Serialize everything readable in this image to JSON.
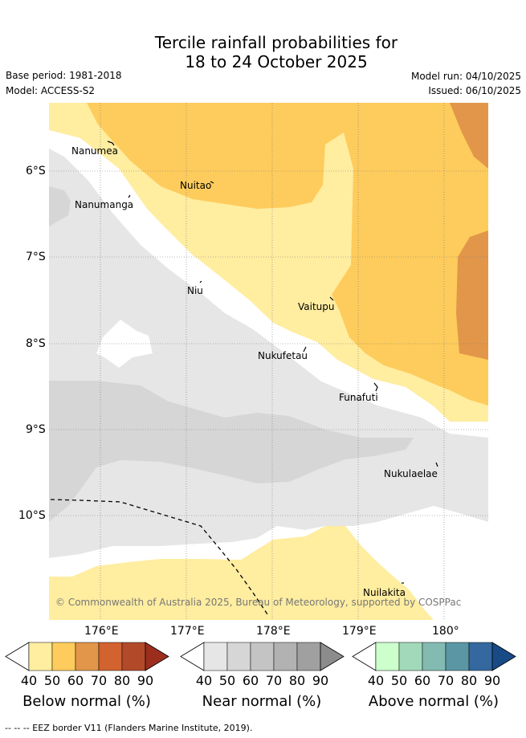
{
  "title": {
    "line1": "Tercile rainfall probabilities for",
    "line2": "18 to 24 October 2025"
  },
  "meta": {
    "base_period": "Base period: 1981-2018",
    "model": "Model: ACCESS-S2",
    "model_run": "Model run: 04/10/2025",
    "issued": "Issued: 06/10/2025"
  },
  "map": {
    "lat_ticks": [
      "6°S",
      "7°S",
      "8°S",
      "9°S",
      "10°S"
    ],
    "lon_ticks": [
      "176°E",
      "177°E",
      "178°E",
      "179°E",
      "180°"
    ],
    "places": [
      "Nanumea",
      "Nuitao",
      "Nanumanga",
      "Niu",
      "Vaitupu",
      "Nukufetau",
      "Funafuti",
      "Nukulaelae",
      "Nuilakita"
    ],
    "copyright": "© Commonwealth of Australia 2025, Bureau of Meteorology, supported by COSPPac"
  },
  "colorbars": [
    {
      "label": "Below normal (%)",
      "ticks": [
        "40",
        "50",
        "60",
        "70",
        "80",
        "90"
      ],
      "colors": [
        "#ffeda0",
        "#fecc5c",
        "#e2964a",
        "#d2622f",
        "#b24a2a",
        "#9c2e1e"
      ]
    },
    {
      "label": "Near normal (%)",
      "ticks": [
        "40",
        "50",
        "60",
        "70",
        "80",
        "90"
      ],
      "colors": [
        "#e6e6e6",
        "#d6d6d6",
        "#c4c4c4",
        "#b2b2b2",
        "#a0a0a0",
        "#8c8c8c"
      ]
    },
    {
      "label": "Above normal (%)",
      "ticks": [
        "40",
        "50",
        "60",
        "70",
        "80",
        "90"
      ],
      "colors": [
        "#ccffcc",
        "#a3d9bb",
        "#83bbb3",
        "#5a96a4",
        "#34689f",
        "#184a86"
      ]
    }
  ],
  "footnote": "--  --  -- EEZ border V11 (Flanders Marine Institute, 2019)."
}
